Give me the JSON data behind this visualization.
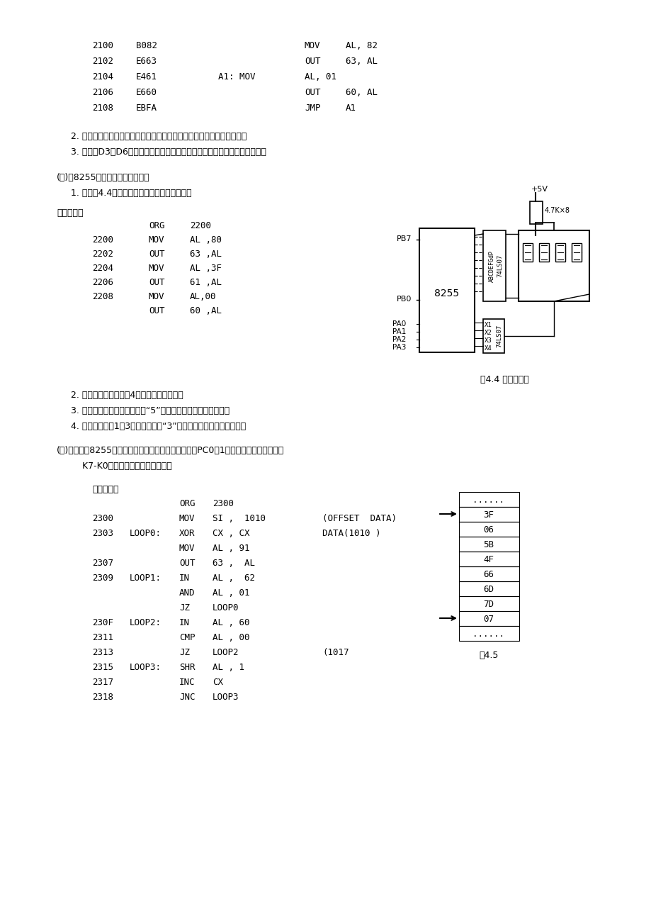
{
  "bg_color": "#ffffff",
  "table_data": [
    "......",
    "3F",
    "06",
    "5B",
    "4F",
    "66",
    "6D",
    "7D",
    "07",
    "......"
  ],
  "fig44_caption": "图4.4 实验线路图",
  "fig45_caption": "图4.5",
  "note1_2": "2. 运行实验程序，拨动开关组，观察发光二极管应亮灯情况，并记录之。",
  "note1_3": "3. 若要使D3或D6对应的发光二极管点亮，试修改程序，进行实验并记录之。",
  "sec2_title": "(三)用8255作为七段数码管的接口",
  "sec2_sub": "1. 按照图4.4连接实验线路，并输入下列程序。",
  "sec2_prog": "实验程序：",
  "sec2_note2": "2. 运行程序，观察记录4个数码管显示情况。",
  "sec2_note3": "3. 若要使数码管上显示字形为“5”，应如何修改程序，实验之。",
  "sec2_note4": "4. 若要使只有第1、3个数码管显示“3”，应如何修改程序，实验之。",
  "sec3_title1": "(四)综合运用8255的三个端口，使之实现如下功能：当PC0＝1时，在四个数码管上显示",
  "sec3_title2": "    K7-K0中处于闭合的开关的位数。",
  "sec3_prog": "实验程序：",
  "plus5v": "+5V",
  "resistor_label": "4.7K×8",
  "chip_label": "8255",
  "pb7": "PB7",
  "pb0": "PB0",
  "pa_labels": [
    "PA0",
    "PA1",
    "PA2",
    "PA3"
  ],
  "ls07_label1": "ABCDEFGdP",
  "ls07_label2": "74LS07",
  "ls07b_pins": [
    "X1",
    "X2",
    "X3",
    "X4"
  ],
  "ls07b_label": "74LS07",
  "data_arrow_label": "DATA(1010 )",
  "addr_arrow_label": "(1017"
}
